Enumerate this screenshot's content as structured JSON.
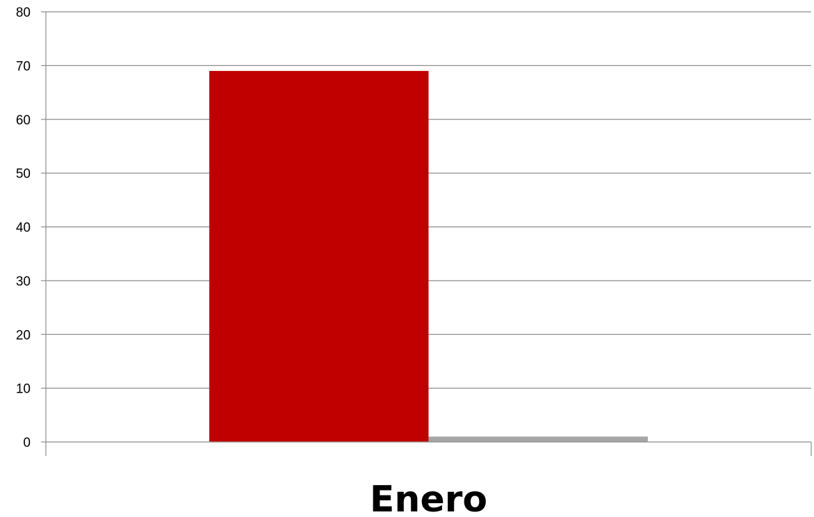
{
  "chart_data": {
    "type": "bar",
    "title": "",
    "xlabel": "",
    "ylabel": "",
    "categories": [
      "Enero"
    ],
    "series": [
      {
        "values": [
          69
        ],
        "color": "#c00000"
      },
      {
        "values": [
          1
        ],
        "color": "#a6a6a6"
      }
    ],
    "ylim": [
      0,
      80
    ],
    "yticks": [
      0,
      10,
      20,
      30,
      40,
      50,
      60,
      70,
      80
    ],
    "grid": true,
    "legend": "none"
  }
}
